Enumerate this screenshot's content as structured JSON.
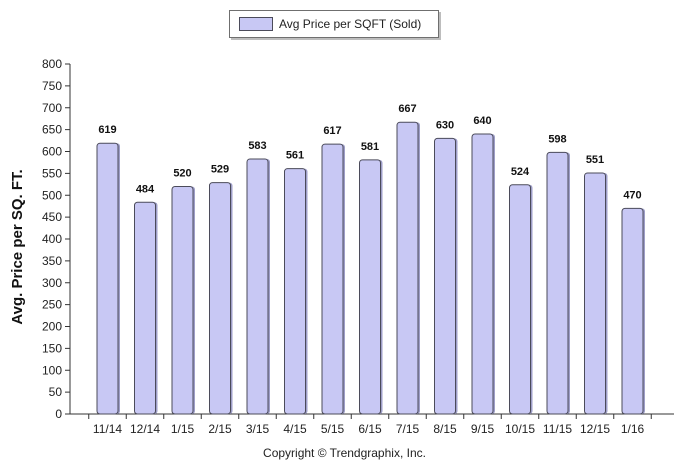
{
  "chart_data": {
    "type": "bar",
    "legend": {
      "label": "Avg Price per SQFT (Sold)",
      "placement": "top-center"
    },
    "categories": [
      "11/14",
      "12/14",
      "1/15",
      "2/15",
      "3/15",
      "4/15",
      "5/15",
      "6/15",
      "7/15",
      "8/15",
      "9/15",
      "10/15",
      "11/15",
      "12/15",
      "1/16"
    ],
    "series": [
      {
        "name": "Avg Price per SQFT (Sold)",
        "values": [
          619,
          484,
          520,
          529,
          583,
          561,
          617,
          581,
          667,
          630,
          640,
          524,
          598,
          551,
          470
        ]
      }
    ],
    "ylabel": "Avg. Price per SQ. FT.",
    "xlabel": "",
    "ylim": [
      0,
      800
    ],
    "yticks": [
      0,
      50,
      100,
      150,
      200,
      250,
      300,
      350,
      400,
      450,
      500,
      550,
      600,
      650,
      700,
      750,
      800
    ],
    "grid": false,
    "bar_color": "#c8c8f4",
    "bar_edge_color": "#4b4b5a"
  },
  "footer": {
    "copyright": "Copyright © Trendgraphix, Inc."
  }
}
